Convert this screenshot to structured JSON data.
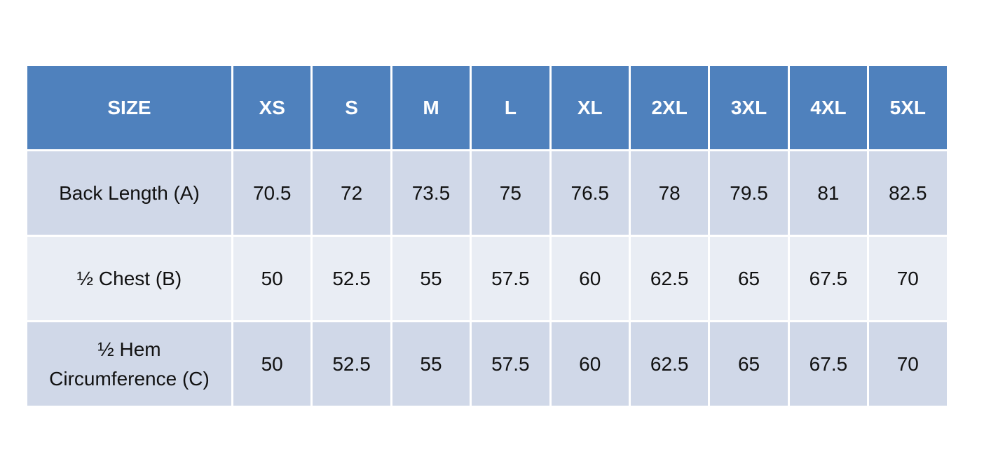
{
  "table": {
    "header": [
      "SIZE",
      "XS",
      "S",
      "M",
      "L",
      "XL",
      "2XL",
      "3XL",
      "4XL",
      "5XL"
    ],
    "rows": [
      [
        "Back Length (A)",
        "70.5",
        "72",
        "73.5",
        "75",
        "76.5",
        "78",
        "79.5",
        "81",
        "82.5"
      ],
      [
        "½ Chest (B)",
        "50",
        "52.5",
        "55",
        "57.5",
        "60",
        "62.5",
        "65",
        "67.5",
        "70"
      ],
      [
        "½ Hem Circumference (C)",
        "50",
        "52.5",
        "55",
        "57.5",
        "60",
        "62.5",
        "65",
        "67.5",
        "70"
      ]
    ]
  }
}
